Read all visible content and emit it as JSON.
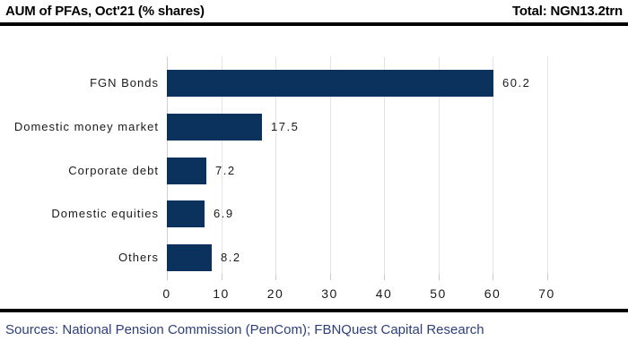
{
  "header": {
    "title": "AUM of PFAs, Oct'21 (% shares)",
    "total": "Total: NGN13.2trn"
  },
  "chart_data": {
    "type": "bar",
    "orientation": "horizontal",
    "title": "AUM of PFAs, Oct'21 (% shares)",
    "unit": "% shares",
    "total": "NGN13.2trn",
    "categories": [
      "FGN Bonds",
      "Domestic money market",
      "Corporate debt",
      "Domestic equities",
      "Others"
    ],
    "values": [
      60.2,
      17.5,
      7.2,
      6.9,
      8.2
    ],
    "value_labels": [
      "60.2",
      "17.5",
      "7.2",
      "6.9",
      "8.2"
    ],
    "x_ticks": [
      0,
      10,
      20,
      30,
      40,
      50,
      60,
      70
    ],
    "xlim": [
      0,
      75
    ],
    "grid": true,
    "legend": false
  },
  "footer": {
    "sources": "Sources: National Pension Commission (PenCom); FBNQuest Capital Research"
  },
  "colors": {
    "bar": "#0a325c",
    "grid": "#e4e4e4",
    "axis_zero": "#cfcfcf",
    "tick": "#c9c9c9",
    "text": "#1a1a1a",
    "rule": "#000000",
    "source_text": "#2d3f7a"
  }
}
